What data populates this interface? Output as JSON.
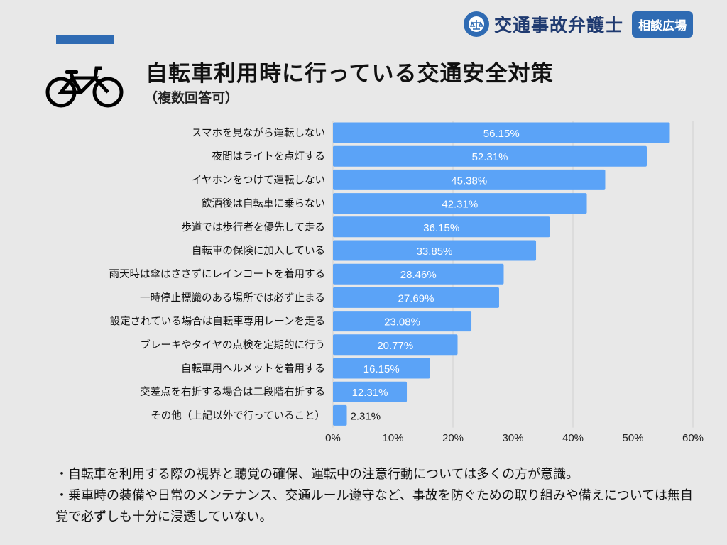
{
  "header": {
    "logo_name": "交通事故弁護士",
    "logo_badge": "相談広場",
    "title": "自転車利用時に行っている交通安全対策",
    "subtitle": "（複数回答可）"
  },
  "colors": {
    "bar": "#5ba3f7",
    "accent": "#2f6bb3",
    "logo_text": "#1f3a70",
    "background": "#e8e8e8"
  },
  "icons": {
    "title_icon": "bicycle-icon",
    "logo_icon": "scales-emblem-icon"
  },
  "chart_data": {
    "type": "bar",
    "orientation": "horizontal",
    "categories": [
      "スマホを見ながら運転しない",
      "夜間はライトを点灯する",
      "イヤホンをつけて運転しない",
      "飲酒後は自転車に乗らない",
      "歩道では歩行者を優先して走る",
      "自転車の保険に加入している",
      "雨天時は傘はささずにレインコートを着用する",
      "一時停止標識のある場所では必ず止まる",
      "設定されている場合は自転車専用レーンを走る",
      "ブレーキやタイヤの点検を定期的に行う",
      "自転車用ヘルメットを着用する",
      "交差点を右折する場合は二段階右折する",
      "その他（上記以外で行っていること）"
    ],
    "values": [
      56.15,
      52.31,
      45.38,
      42.31,
      36.15,
      33.85,
      28.46,
      27.69,
      23.08,
      20.77,
      16.15,
      12.31,
      2.31
    ],
    "data_labels": [
      "56.15%",
      "52.31%",
      "45.38%",
      "42.31%",
      "36.15%",
      "33.85%",
      "28.46%",
      "27.69%",
      "23.08%",
      "20.77%",
      "16.15%",
      "12.31%",
      "2.31%"
    ],
    "xlim": [
      0,
      60
    ],
    "xticks": [
      "0%",
      "10%",
      "20%",
      "30%",
      "40%",
      "50%",
      "60%"
    ],
    "grid": "vertical",
    "legend": "none"
  },
  "notes": [
    "・自転車を利用する際の視界と聴覚の確保、運転中の注意行動については多くの方が意識。",
    "・乗車時の装備や日常のメンテナンス、交通ルール遵守など、事故を防ぐための取り組みや備えについては無自覚で必ずしも十分に浸透していない。"
  ]
}
